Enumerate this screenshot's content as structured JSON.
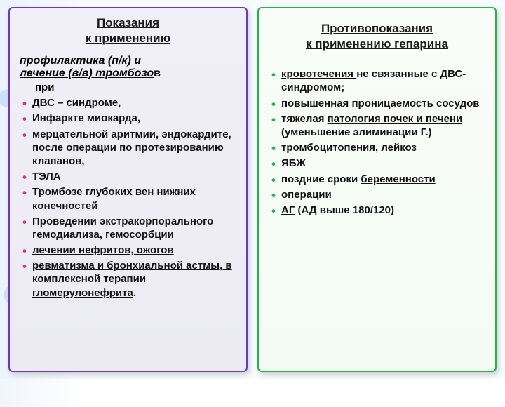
{
  "colors": {
    "left_border": "#6d3ab5",
    "right_border": "#27b24a",
    "left_bullet": "#d13a8a",
    "right_bullet": "#27b24a",
    "text": "#111111",
    "bg": "#f8fbfe"
  },
  "left": {
    "title_line1": "Показания",
    "title_line2": "к применению",
    "lead_underlined1": "профилактика (п/к) и",
    "lead_underlined2": "лечение (в/в) тромбозо",
    "lead_tail_inline": "в",
    "lead_tail_next": "при",
    "items": [
      [
        {
          "t": "ДВС – синдроме,",
          "u": false
        }
      ],
      [
        {
          "t": "Инфаркте миокарда,",
          "u": false
        }
      ],
      [
        {
          "t": "мерцательной аритмии, эндокардите, после операции по протезированию клапанов,",
          "u": false
        }
      ],
      [
        {
          "t": "ТЭЛА",
          "u": false
        }
      ],
      [
        {
          "t": "Тромбозе глубоких вен нижних конечностей",
          "u": false
        }
      ],
      [
        {
          "t": "Проведении экстракорпорального гемодиализа, гемосорбции",
          "u": false
        }
      ],
      [
        {
          "t": "лечении нефритов, ожогов",
          "u": true
        }
      ],
      [
        {
          "t": "ревматизма и бронхиальной астмы, в комплексной терапии гломерулонефрита",
          "u": true
        },
        {
          "t": ".",
          "u": false
        }
      ]
    ]
  },
  "right": {
    "title_line1": "Противопоказания",
    "title_line2": "к применению гепарина",
    "items": [
      [
        {
          "t": "кровотечения ",
          "u": true
        },
        {
          "t": "не связанные с ДВС-синдромом;",
          "u": false
        }
      ],
      [
        {
          "t": "повышенная проницаемость сосудов",
          "u": false
        }
      ],
      [
        {
          "t": "тяжелая ",
          "u": false
        },
        {
          "t": "патология почек и печени ",
          "u": true
        },
        {
          "t": "(уменьшение элиминации Г.)",
          "u": false
        }
      ],
      [
        {
          "t": "тромбоцитопения",
          "u": true
        },
        {
          "t": ", лейкоз",
          "u": false
        }
      ],
      [
        {
          "t": "ЯБЖ",
          "u": false
        }
      ],
      [
        {
          "t": "поздние сроки ",
          "u": false
        },
        {
          "t": "беременности",
          "u": true
        }
      ],
      [
        {
          "t": "операции",
          "u": true
        }
      ],
      [
        {
          "t": "АГ",
          "u": true
        },
        {
          "t": " (АД выше 180/120)",
          "u": false
        }
      ]
    ]
  }
}
